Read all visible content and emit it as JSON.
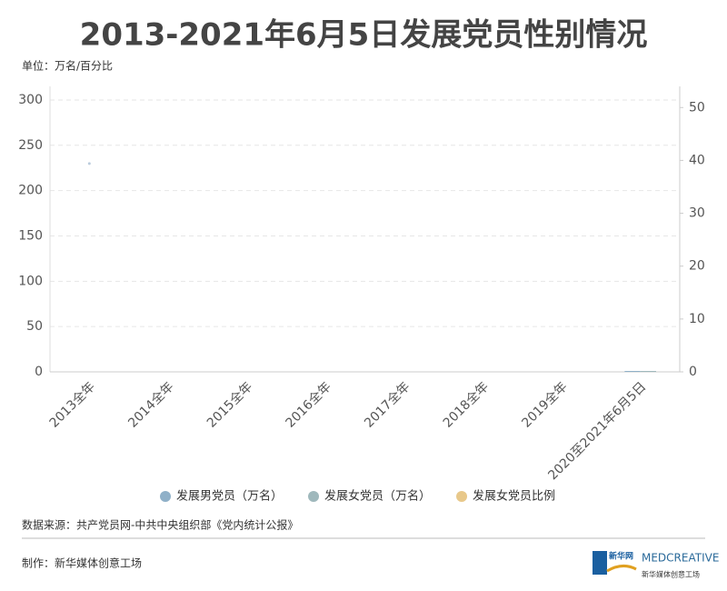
{
  "chart_data": {
    "type": "bar",
    "title": "2013-2021年6月5日发展党员性别情况",
    "unit_label": "单位：万名/百分比",
    "categories": [
      "2013全年",
      "2014全年",
      "2015全年",
      "2016全年",
      "2017全年",
      "2018全年",
      "2019全年",
      "2020至2021年6月5日"
    ],
    "series": [
      {
        "name": "发展男党员（万名）",
        "color": "#8fb0c8",
        "values": [
          0,
          0,
          0,
          0,
          0,
          0,
          0,
          1
        ]
      },
      {
        "name": "发展女党员（万名）",
        "color": "#9fb8bc",
        "values": [
          0,
          0,
          0,
          0,
          0,
          0,
          0,
          1
        ]
      },
      {
        "name": "发展女党员比例",
        "color": "#e8c88a",
        "type": "line",
        "axis": "y2",
        "values": [
          39.4,
          null,
          null,
          null,
          null,
          null,
          null,
          null
        ]
      }
    ],
    "ylim": [
      0,
      315
    ],
    "yticks": [
      0,
      50,
      100,
      150,
      200,
      250,
      300
    ],
    "y2lim": [
      0,
      54
    ],
    "y2ticks": [
      0,
      10,
      20,
      30,
      40,
      50
    ],
    "grid": true,
    "legend": "bottom"
  },
  "footer": {
    "source": "数据来源：共产党员网-中共中央组织部《党内统计公报》",
    "credit": "制作：新华媒体创意工场"
  },
  "logos": [
    "新华网",
    "MEDCREATIVE",
    "新华媒体创意工场"
  ]
}
